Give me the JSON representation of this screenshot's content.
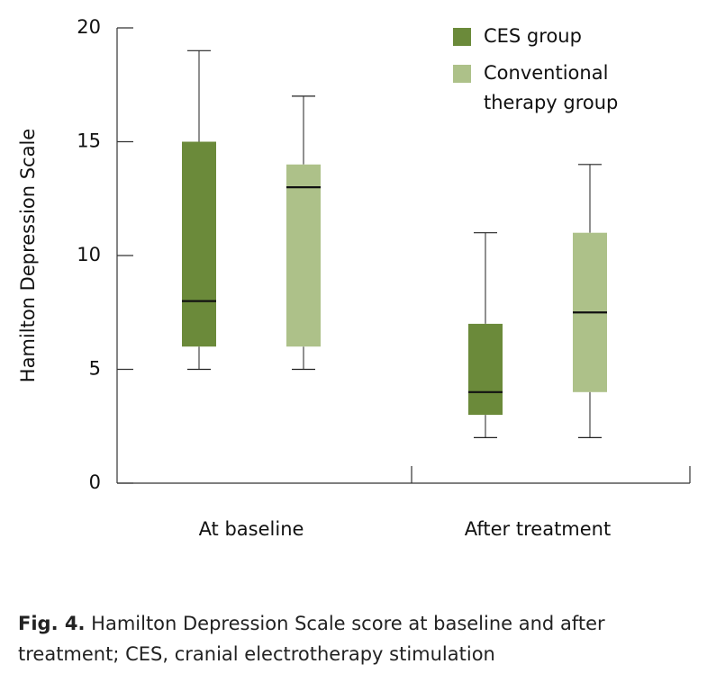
{
  "chart_data": {
    "type": "box",
    "ylabel": "Hamilton Depression Scale",
    "categories": [
      "At baseline",
      "After treatment"
    ],
    "series": [
      {
        "name": "CES group",
        "color": "#6b8a3a",
        "values": [
          {
            "min": 5,
            "q1": 6,
            "median": 8,
            "q3": 15,
            "max": 19
          },
          {
            "min": 2,
            "q1": 3,
            "median": 4,
            "q3": 7,
            "max": 11
          }
        ]
      },
      {
        "name": "Conventional therapy group",
        "color": "#adc189",
        "values": [
          {
            "min": 5,
            "q1": 6,
            "median": 13,
            "q3": 14,
            "max": 17
          },
          {
            "min": 2,
            "q1": 4,
            "median": 7.5,
            "q3": 11,
            "max": 14
          }
        ]
      }
    ],
    "ylim": [
      0,
      20
    ],
    "yticks": [
      0,
      5,
      10,
      15,
      20
    ],
    "grid": false
  },
  "caption": {
    "label": "Fig. 4.",
    "text": "Hamilton Depression Scale score at baseline and after treatment; CES, cranial electrotherapy stimulation"
  }
}
